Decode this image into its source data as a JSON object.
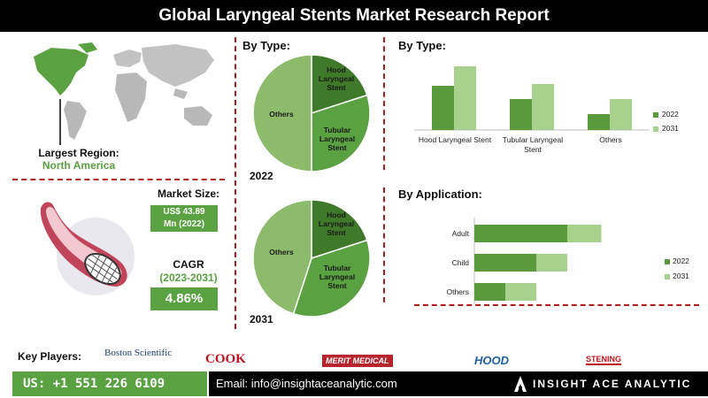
{
  "title": "Global Laryngeal Stents Market Research Report",
  "region": {
    "label": "Largest Region:",
    "value": "North America"
  },
  "market_size": {
    "label": "Market Size:",
    "value_line1": "US$ 43.89",
    "value_line2": "Mn (2022)"
  },
  "cagr": {
    "label": "CAGR",
    "period": "(2023-2031)",
    "value": "4.86%"
  },
  "pie_section": {
    "title": "By Type:",
    "label_2022": "2022",
    "label_2031": "2031"
  },
  "bar_type_title": "By Type:",
  "bar_app_title": "By Application:",
  "key_players": {
    "label": "Key Players:",
    "logos": [
      "Boston Scientific",
      "COOK",
      "MERIT MEDICAL",
      "HOOD",
      "STENING"
    ]
  },
  "footer": {
    "phone": "US: +1 551 226 6109",
    "email": "Email: info@insightaceanalytic.com",
    "brand": "INSIGHT ACE ANALYTIC"
  },
  "colors": {
    "dark_green": "#5a9a3c",
    "light_green": "#a9d18e",
    "mid_green": "#8cbb6c",
    "accent_red": "#b01c1c"
  },
  "chart_data": [
    {
      "type": "pie",
      "title": "2022",
      "labels": [
        "Hood Laryngeal Stent",
        "Tubular Laryngeal Stent",
        "Others"
      ],
      "values": [
        20,
        30,
        50
      ]
    },
    {
      "type": "pie",
      "title": "2031",
      "labels": [
        "Hood Laryngeal Stent",
        "Tubular Laryngeal Stent",
        "Others"
      ],
      "values": [
        20,
        35,
        45
      ]
    },
    {
      "type": "bar",
      "title": "By Type:",
      "categories": [
        "Hood Laryngeal Stent",
        "Tubular Laryngeal Stent",
        "Others"
      ],
      "series": [
        {
          "name": "2022",
          "values": [
            50,
            35,
            18
          ]
        },
        {
          "name": "2031",
          "values": [
            72,
            52,
            35
          ]
        }
      ],
      "legend": "right"
    },
    {
      "type": "bar",
      "orientation": "horizontal",
      "title": "By Application:",
      "categories": [
        "Adult",
        "Child",
        "Others"
      ],
      "series": [
        {
          "name": "2022",
          "values": [
            60,
            40,
            20
          ]
        },
        {
          "name": "2031",
          "values": [
            82,
            60,
            40
          ]
        }
      ],
      "legend": "right"
    }
  ]
}
